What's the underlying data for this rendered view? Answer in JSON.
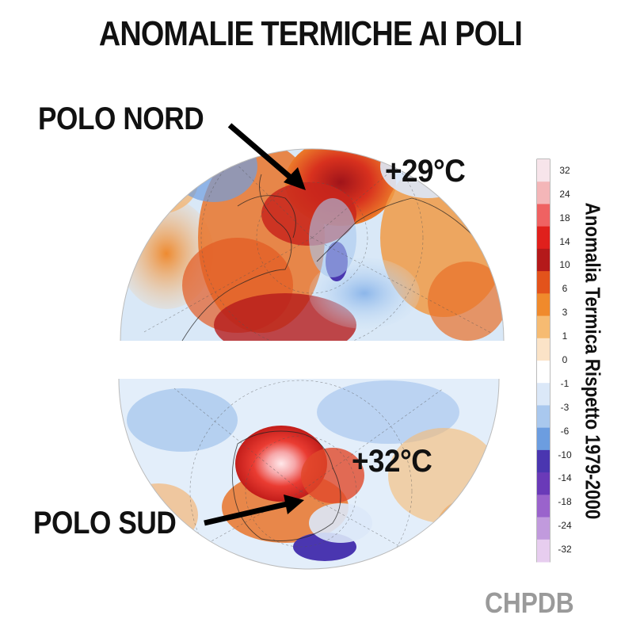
{
  "title": "ANOMALIE TERMICHE AI POLI",
  "north": {
    "label": "POLO NORD",
    "anomaly": "+29°C"
  },
  "south": {
    "label": "POLO SUD",
    "anomaly": "+32°C"
  },
  "colorbar": {
    "title": "Anomalia Termica Rispetto 1979-2000",
    "ticks": [
      "32",
      "24",
      "18",
      "14",
      "10",
      "6",
      "3",
      "1",
      "0",
      "-1",
      "-3",
      "-6",
      "-10",
      "-14",
      "-18",
      "-24",
      "-32"
    ],
    "colors": [
      "#f7e4ea",
      "#f4b6b8",
      "#ef6262",
      "#e0201c",
      "#b4191a",
      "#e3531b",
      "#f08a2c",
      "#f6bb72",
      "#fbe3c7",
      "#ffffff",
      "#dbe8f8",
      "#a9c8ee",
      "#6c9de0",
      "#4a36b0",
      "#6a3ab8",
      "#9a63cc",
      "#c19add",
      "#e7cdef"
    ]
  },
  "credit": "CHPDB",
  "palette": {
    "warm": "#e0201c",
    "cool": "#4a36b0",
    "ocean": "#cfe3f6"
  }
}
